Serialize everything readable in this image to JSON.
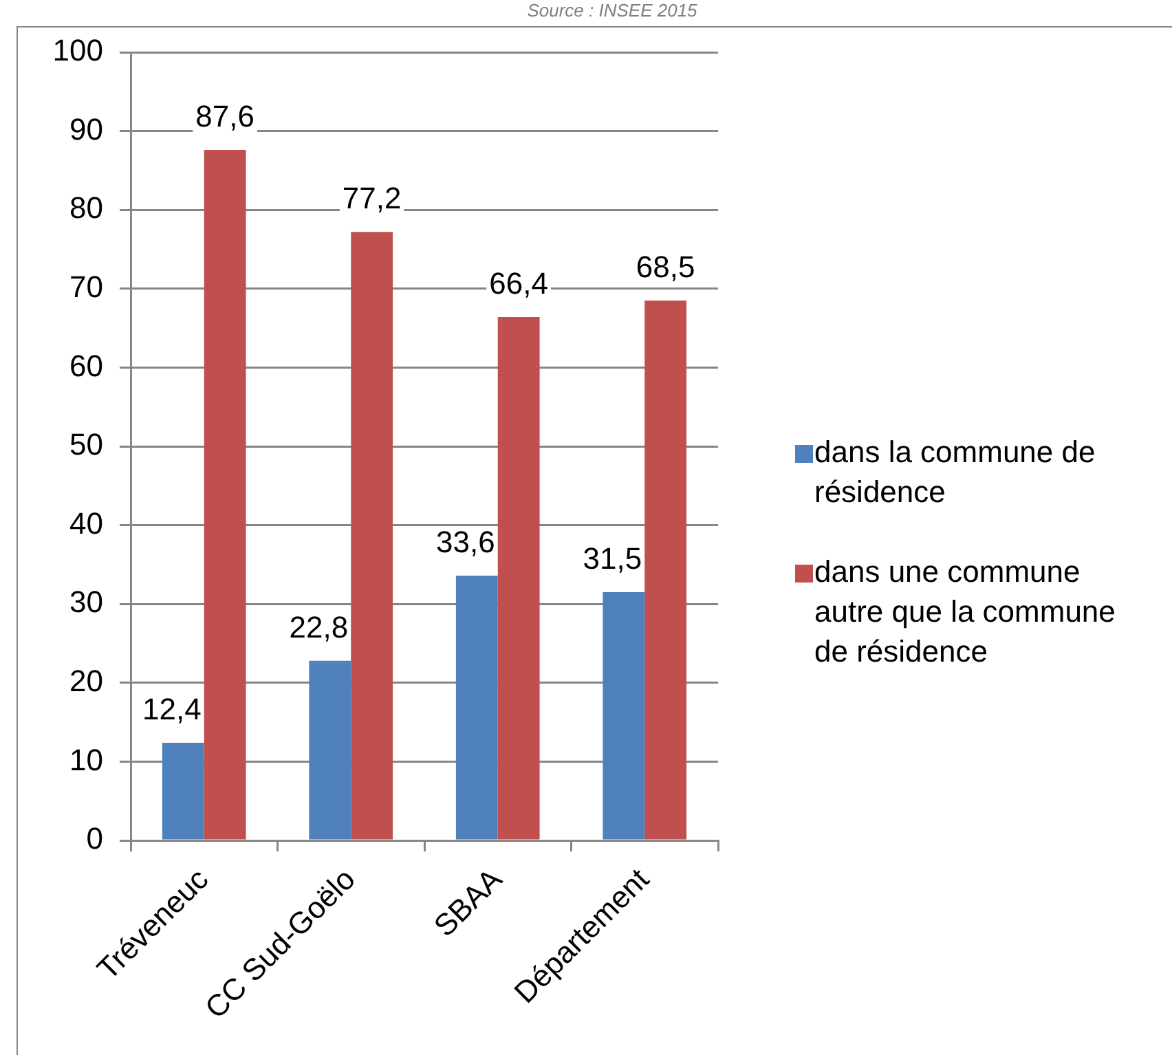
{
  "chart_data": {
    "type": "bar",
    "annotations": [
      "Source : INSEE 2015"
    ],
    "categories": [
      "Tréveneuc",
      "CC Sud-Goëlo",
      "SBAA",
      "Département"
    ],
    "series": [
      {
        "name": "dans la commune de résidence",
        "color": "#4f81bd",
        "values": [
          12.4,
          22.8,
          33.6,
          31.5
        ],
        "value_labels": [
          "12,4",
          "22,8",
          "33,6",
          "31,5"
        ]
      },
      {
        "name": "dans une commune autre que la commune de résidence",
        "color": "#c0504d",
        "values": [
          87.6,
          77.2,
          66.4,
          68.5
        ],
        "value_labels": [
          "87,6",
          "77,2",
          "66,4",
          "68,5"
        ]
      }
    ],
    "ylim": [
      0,
      100
    ],
    "yticks": [
      0,
      10,
      20,
      30,
      40,
      50,
      60,
      70,
      80,
      90,
      100
    ],
    "grid": "y",
    "legend": "right"
  }
}
